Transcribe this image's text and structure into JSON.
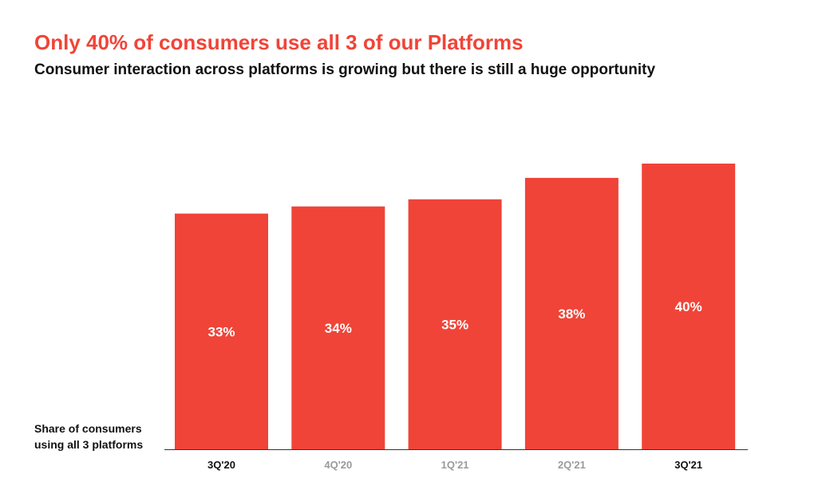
{
  "title": "Only 40% of consumers use all 3 of our Platforms",
  "subtitle": "Consumer interaction across platforms is growing but there is still a huge opportunity",
  "ylabel_lines": [
    "Share of consumers",
    "using all 3 platforms"
  ],
  "colors": {
    "title": "#f04438",
    "bar": "#f04438",
    "tick_emphasis": "#111111",
    "tick_muted": "#9a9a9a",
    "axis": "#333333"
  },
  "chart_data": {
    "type": "bar",
    "categories": [
      "3Q'20",
      "4Q'20",
      "1Q'21",
      "2Q'21",
      "3Q'21"
    ],
    "values": [
      33,
      34,
      35,
      38,
      40
    ],
    "data_labels": [
      "33%",
      "34%",
      "35%",
      "38%",
      "40%"
    ],
    "emphasized_categories": [
      "3Q'20",
      "3Q'21"
    ],
    "ylabel": "Share of consumers using all 3 platforms",
    "ylim": [
      0,
      40
    ],
    "grid": false
  }
}
